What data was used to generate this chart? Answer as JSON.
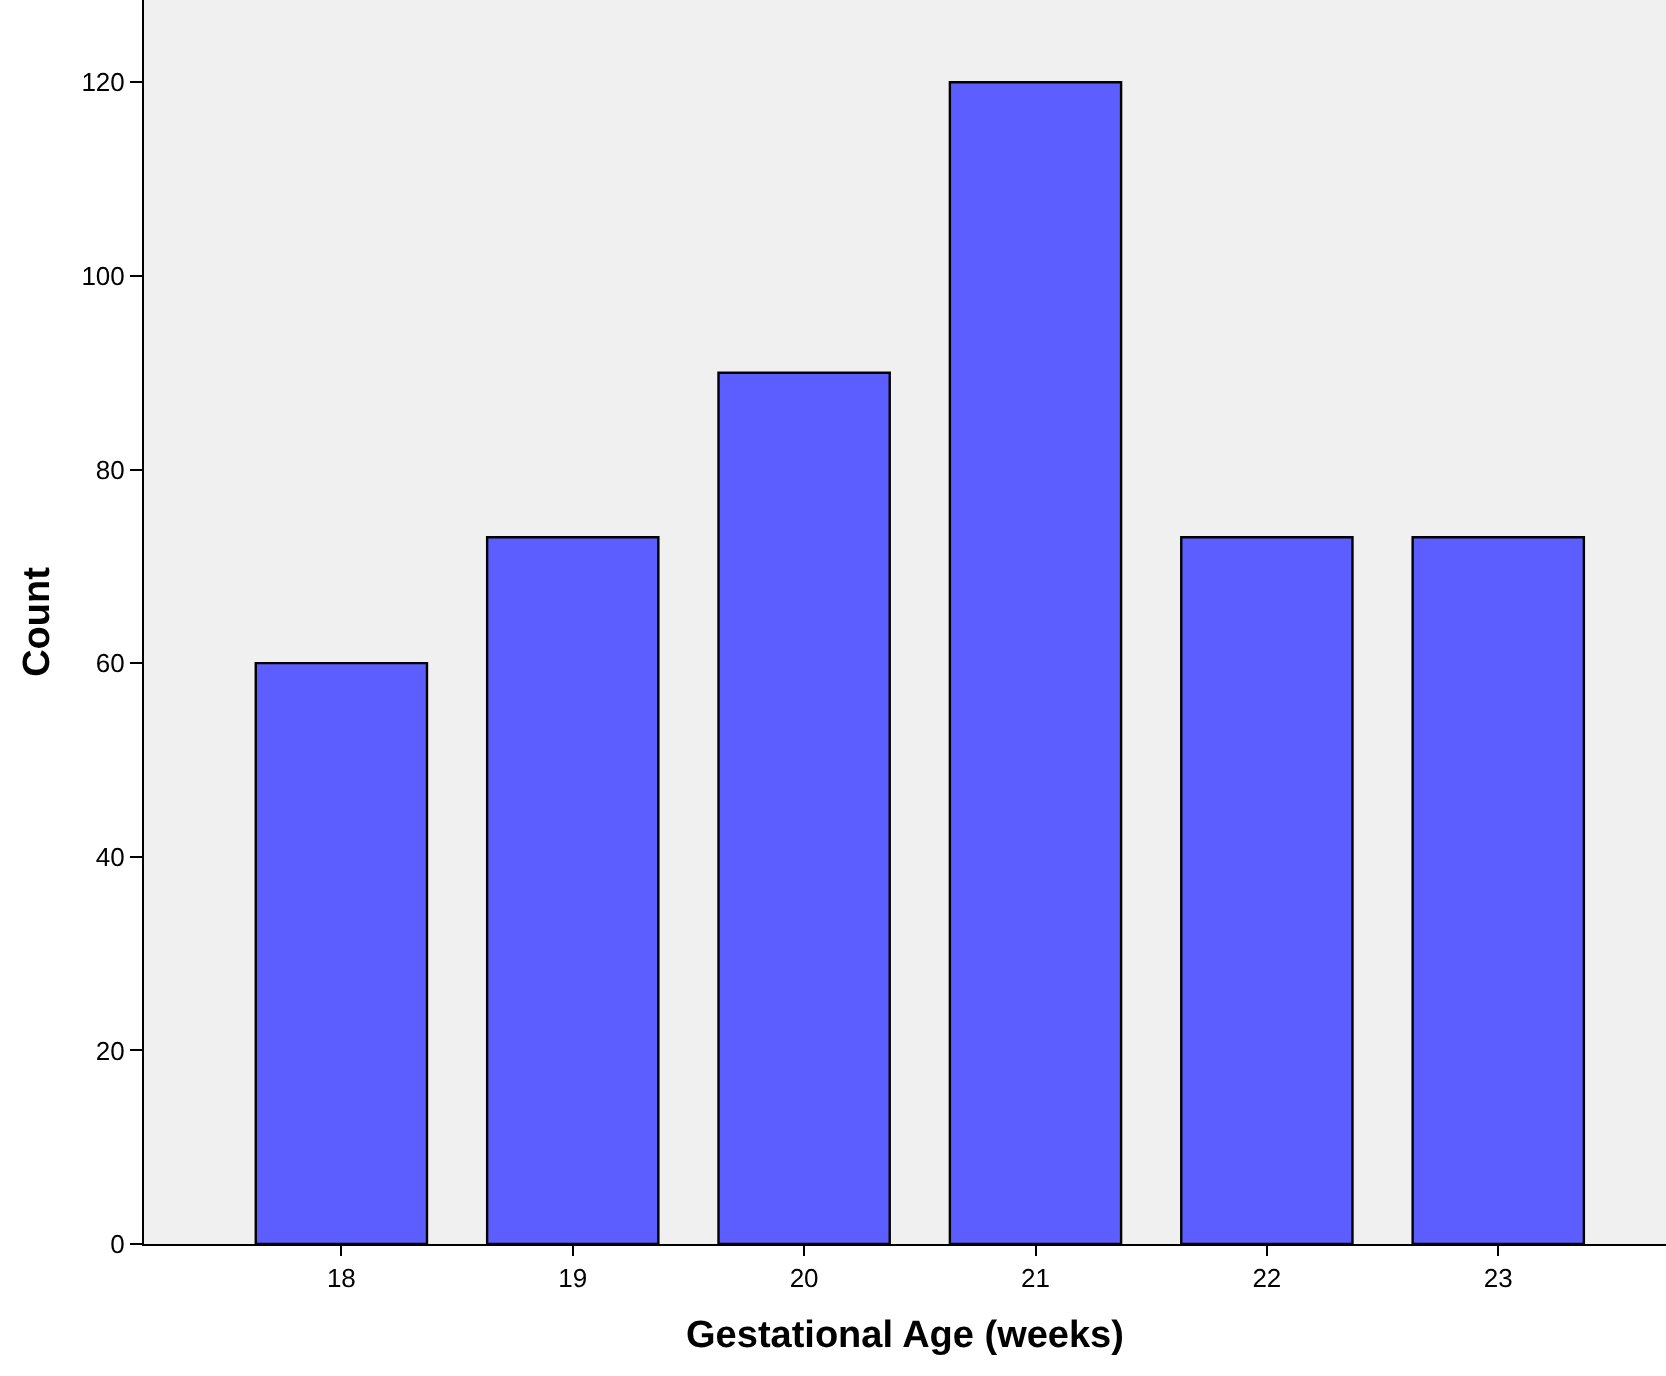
{
  "chart_data": {
    "type": "bar",
    "xlabel": "Gestational Age (weeks)",
    "ylabel": "Count",
    "categories": [
      "18",
      "19",
      "20",
      "21",
      "22",
      "23"
    ],
    "values": [
      60,
      73,
      90,
      120,
      73,
      73
    ],
    "color": "#5d5eff",
    "ylim": [
      0,
      128.5
    ],
    "yticks": [
      0,
      20,
      40,
      60,
      80,
      100,
      120
    ],
    "grid": false
  }
}
